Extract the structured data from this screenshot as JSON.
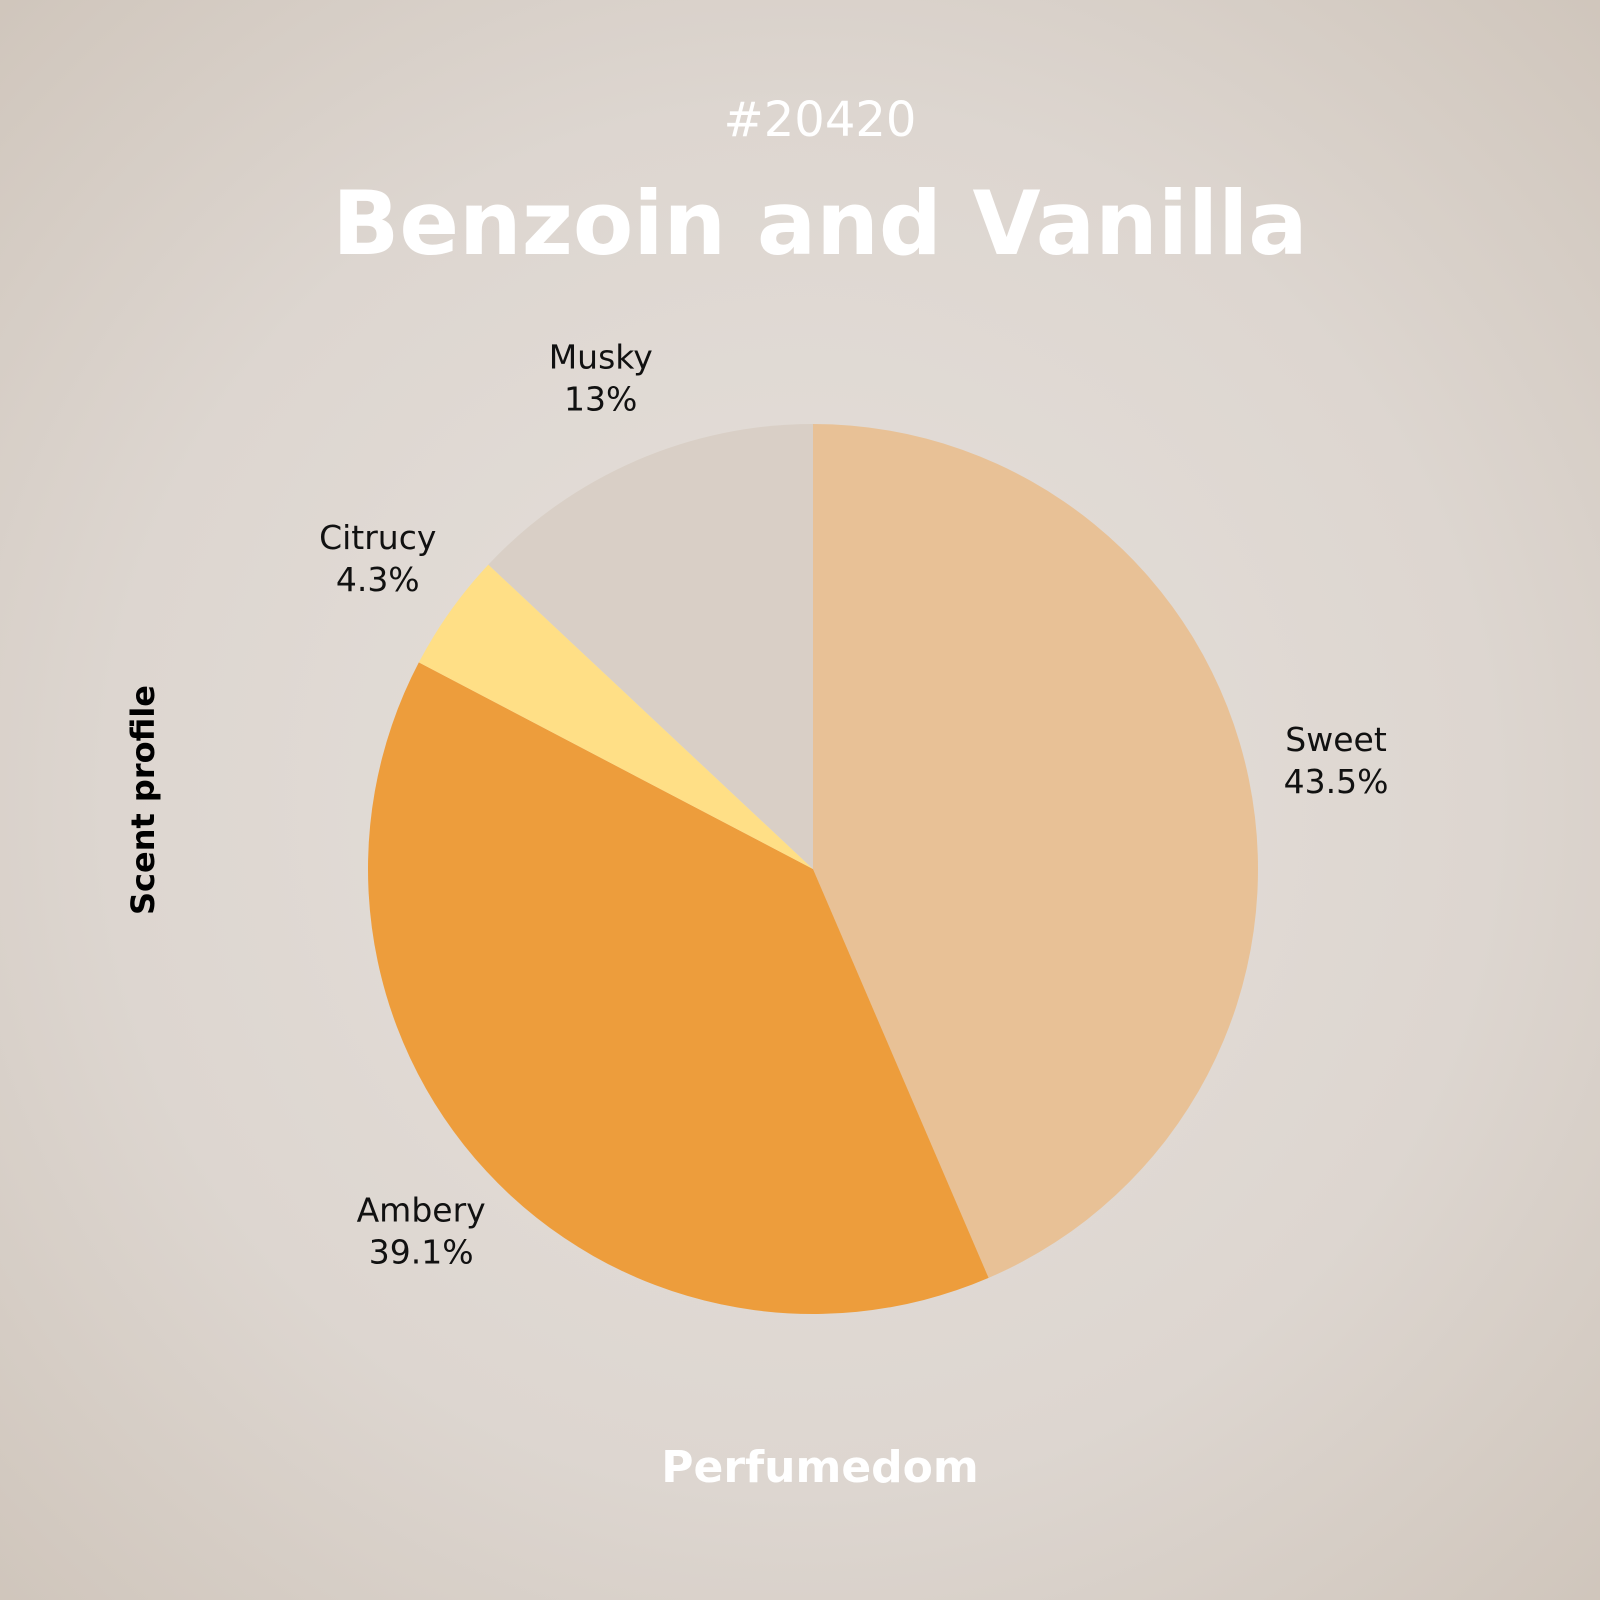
{
  "chart_data": {
    "type": "pie",
    "subtitle": "#20420",
    "title": "Benzoin and Vanilla",
    "axis_label": "Scent profile",
    "footer": "Perfumedom",
    "categories": [
      "Sweet",
      "Ambery",
      "Citrucy",
      "Musky"
    ],
    "values": [
      43.5,
      39.1,
      4.3,
      13
    ],
    "value_labels": [
      "43.5%",
      "39.1%",
      "4.3%",
      "13%"
    ],
    "colors": [
      "#e8c196",
      "#ed9d3c",
      "#ffdf86",
      "#d9cfc6"
    ]
  }
}
